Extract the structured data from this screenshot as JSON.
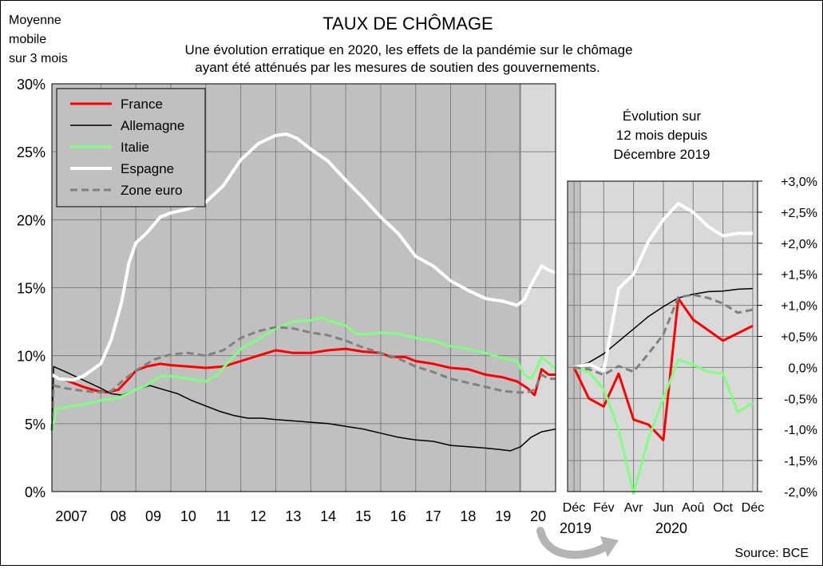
{
  "header": {
    "corner_label": [
      "Moyenne",
      "mobile",
      "sur 3 mois"
    ],
    "title": "TAUX DE CHÔMAGE",
    "subtitle": [
      "Une évolution erratique en 2020, les effets de la pandémie sur le chômage",
      "ayant été atténués par les mesures de soutien des gouvernements."
    ]
  },
  "inset_title": [
    "Évolution sur",
    "12 mois depuis",
    "Décembre 2019"
  ],
  "source": "Source: BCE",
  "colors": {
    "France": "#ff0000",
    "Allemagne": "#000000",
    "Italie": "#7fff7f",
    "Espagne": "#ffffff",
    "Zone euro": "#808080",
    "plot_bg": "#c0c0c0",
    "plot_bg_2020": "#d9d9d9"
  },
  "chart_data": [
    {
      "type": "line",
      "ylim": [
        0,
        30
      ],
      "xlim": [
        2006.6,
        2021.0
      ],
      "yticks": [
        "0%",
        "5%",
        "10%",
        "15%",
        "20%",
        "25%",
        "30%"
      ],
      "xticks": [
        "2007",
        "08",
        "09",
        "10",
        "11",
        "12",
        "13",
        "14",
        "15",
        "16",
        "17",
        "18",
        "19",
        "20"
      ],
      "grid": true,
      "legend": "top-left",
      "series": [
        {
          "name": "France",
          "style": "solid",
          "points": [
            [
              2006.6,
              8.6
            ],
            [
              2006.75,
              8.4
            ],
            [
              2007.0,
              8.2
            ],
            [
              2007.5,
              7.7
            ],
            [
              2007.9,
              7.4
            ],
            [
              2008.2,
              7.3
            ],
            [
              2008.5,
              7.5
            ],
            [
              2008.8,
              8.3
            ],
            [
              2009.0,
              8.9
            ],
            [
              2009.3,
              9.2
            ],
            [
              2009.7,
              9.4
            ],
            [
              2010.0,
              9.3
            ],
            [
              2010.5,
              9.2
            ],
            [
              2011.0,
              9.1
            ],
            [
              2011.5,
              9.2
            ],
            [
              2012.0,
              9.6
            ],
            [
              2012.5,
              10.0
            ],
            [
              2013.0,
              10.4
            ],
            [
              2013.5,
              10.2
            ],
            [
              2014.0,
              10.2
            ],
            [
              2014.5,
              10.4
            ],
            [
              2015.0,
              10.5
            ],
            [
              2015.5,
              10.3
            ],
            [
              2016.0,
              10.2
            ],
            [
              2016.3,
              9.9
            ],
            [
              2016.7,
              9.9
            ],
            [
              2017.0,
              9.6
            ],
            [
              2017.5,
              9.4
            ],
            [
              2018.0,
              9.1
            ],
            [
              2018.5,
              9.0
            ],
            [
              2019.0,
              8.6
            ],
            [
              2019.5,
              8.4
            ],
            [
              2019.9,
              8.1
            ],
            [
              2020.2,
              7.6
            ],
            [
              2020.4,
              7.1
            ],
            [
              2020.6,
              9.0
            ],
            [
              2020.8,
              8.6
            ],
            [
              2021.0,
              8.6
            ]
          ]
        },
        {
          "name": "Allemagne",
          "style": "solid",
          "points": [
            [
              2006.6,
              4.2
            ],
            [
              2006.65,
              9.2
            ],
            [
              2007.0,
              8.8
            ],
            [
              2007.5,
              8.2
            ],
            [
              2008.0,
              7.6
            ],
            [
              2008.3,
              7.2
            ],
            [
              2008.6,
              7.1
            ],
            [
              2009.0,
              7.5
            ],
            [
              2009.4,
              7.8
            ],
            [
              2009.8,
              7.5
            ],
            [
              2010.2,
              7.2
            ],
            [
              2010.6,
              6.7
            ],
            [
              2011.0,
              6.3
            ],
            [
              2011.4,
              5.9
            ],
            [
              2011.8,
              5.6
            ],
            [
              2012.2,
              5.4
            ],
            [
              2012.6,
              5.4
            ],
            [
              2013.0,
              5.3
            ],
            [
              2013.5,
              5.2
            ],
            [
              2014.0,
              5.1
            ],
            [
              2014.5,
              5.0
            ],
            [
              2015.0,
              4.8
            ],
            [
              2015.5,
              4.6
            ],
            [
              2016.0,
              4.3
            ],
            [
              2016.5,
              4.0
            ],
            [
              2017.0,
              3.8
            ],
            [
              2017.5,
              3.7
            ],
            [
              2018.0,
              3.4
            ],
            [
              2018.5,
              3.3
            ],
            [
              2019.0,
              3.2
            ],
            [
              2019.4,
              3.1
            ],
            [
              2019.7,
              3.0
            ],
            [
              2020.0,
              3.3
            ],
            [
              2020.3,
              4.0
            ],
            [
              2020.6,
              4.4
            ],
            [
              2021.0,
              4.6
            ]
          ]
        },
        {
          "name": "Italie",
          "style": "solid",
          "points": [
            [
              2006.6,
              4.2
            ],
            [
              2006.72,
              6.1
            ],
            [
              2007.0,
              6.2
            ],
            [
              2007.5,
              6.4
            ],
            [
              2008.0,
              6.7
            ],
            [
              2008.5,
              6.9
            ],
            [
              2009.0,
              7.5
            ],
            [
              2009.3,
              7.8
            ],
            [
              2009.7,
              8.5
            ],
            [
              2010.0,
              8.5
            ],
            [
              2010.5,
              8.3
            ],
            [
              2011.0,
              8.1
            ],
            [
              2011.3,
              8.5
            ],
            [
              2011.6,
              9.4
            ],
            [
              2012.0,
              10.5
            ],
            [
              2012.5,
              11.2
            ],
            [
              2013.0,
              12.0
            ],
            [
              2013.5,
              12.5
            ],
            [
              2014.0,
              12.6
            ],
            [
              2014.3,
              12.8
            ],
            [
              2014.6,
              12.5
            ],
            [
              2015.0,
              12.2
            ],
            [
              2015.3,
              11.6
            ],
            [
              2015.7,
              11.6
            ],
            [
              2016.0,
              11.7
            ],
            [
              2016.5,
              11.6
            ],
            [
              2017.0,
              11.3
            ],
            [
              2017.5,
              11.1
            ],
            [
              2018.0,
              10.7
            ],
            [
              2018.5,
              10.5
            ],
            [
              2019.0,
              10.2
            ],
            [
              2019.5,
              9.8
            ],
            [
              2019.9,
              9.6
            ],
            [
              2020.1,
              8.6
            ],
            [
              2020.3,
              8.3
            ],
            [
              2020.45,
              9.0
            ],
            [
              2020.6,
              9.9
            ],
            [
              2020.8,
              9.5
            ],
            [
              2021.0,
              9.0
            ]
          ]
        },
        {
          "name": "Espagne",
          "style": "solid",
          "points": [
            [
              2006.6,
              8.6
            ],
            [
              2006.8,
              8.3
            ],
            [
              2007.2,
              8.2
            ],
            [
              2007.5,
              8.5
            ],
            [
              2008.0,
              9.4
            ],
            [
              2008.3,
              11.2
            ],
            [
              2008.6,
              14.0
            ],
            [
              2008.8,
              16.8
            ],
            [
              2009.0,
              18.3
            ],
            [
              2009.3,
              19.0
            ],
            [
              2009.7,
              20.2
            ],
            [
              2010.0,
              20.5
            ],
            [
              2010.5,
              20.8
            ],
            [
              2011.0,
              21.3
            ],
            [
              2011.5,
              22.5
            ],
            [
              2012.0,
              24.4
            ],
            [
              2012.5,
              25.6
            ],
            [
              2013.0,
              26.2
            ],
            [
              2013.3,
              26.3
            ],
            [
              2013.6,
              26.0
            ],
            [
              2014.0,
              25.2
            ],
            [
              2014.5,
              24.3
            ],
            [
              2015.0,
              22.9
            ],
            [
              2015.5,
              21.6
            ],
            [
              2016.0,
              20.2
            ],
            [
              2016.5,
              19.0
            ],
            [
              2017.0,
              17.3
            ],
            [
              2017.5,
              16.6
            ],
            [
              2018.0,
              15.5
            ],
            [
              2018.5,
              14.8
            ],
            [
              2019.0,
              14.2
            ],
            [
              2019.5,
              14.0
            ],
            [
              2019.9,
              13.7
            ],
            [
              2020.1,
              14.1
            ],
            [
              2020.3,
              15.2
            ],
            [
              2020.6,
              16.6
            ],
            [
              2020.8,
              16.3
            ],
            [
              2021.0,
              16.1
            ]
          ]
        },
        {
          "name": "Zone euro",
          "style": "dashed",
          "points": [
            [
              2006.6,
              4.5
            ],
            [
              2006.65,
              7.8
            ],
            [
              2007.0,
              7.6
            ],
            [
              2007.5,
              7.4
            ],
            [
              2008.0,
              7.3
            ],
            [
              2008.3,
              7.4
            ],
            [
              2008.6,
              8.1
            ],
            [
              2009.0,
              8.9
            ],
            [
              2009.5,
              9.7
            ],
            [
              2010.0,
              10.1
            ],
            [
              2010.5,
              10.2
            ],
            [
              2011.0,
              10.0
            ],
            [
              2011.5,
              10.4
            ],
            [
              2012.0,
              11.3
            ],
            [
              2012.5,
              11.8
            ],
            [
              2013.0,
              12.1
            ],
            [
              2013.5,
              12.0
            ],
            [
              2014.0,
              11.7
            ],
            [
              2014.5,
              11.5
            ],
            [
              2015.0,
              11.1
            ],
            [
              2015.5,
              10.6
            ],
            [
              2016.0,
              10.2
            ],
            [
              2016.5,
              9.8
            ],
            [
              2017.0,
              9.2
            ],
            [
              2017.5,
              8.8
            ],
            [
              2018.0,
              8.3
            ],
            [
              2018.5,
              8.0
            ],
            [
              2019.0,
              7.7
            ],
            [
              2019.5,
              7.4
            ],
            [
              2019.9,
              7.3
            ],
            [
              2020.2,
              7.3
            ],
            [
              2020.4,
              7.5
            ],
            [
              2020.6,
              8.6
            ],
            [
              2020.8,
              8.3
            ],
            [
              2021.0,
              8.3
            ]
          ]
        }
      ]
    },
    {
      "type": "line",
      "title": "Évolution sur 12 mois depuis Décembre 2019",
      "ylim": [
        -2.0,
        3.0
      ],
      "yticks": [
        "+3,0%",
        "+2,5%",
        "+2,0%",
        "+1,5%",
        "+1,0%",
        "+0,5%",
        "0,0%",
        "-0,5%",
        "-1,0%",
        "-1,5%",
        "-2,0%"
      ],
      "xticks": [
        "Déc",
        "Fév",
        "Avr",
        "Jun",
        "Aoû",
        "Oct",
        "Déc"
      ],
      "xyears": [
        "2019",
        "2020"
      ],
      "grid": true,
      "series": [
        {
          "name": "France",
          "style": "solid",
          "values": [
            0.0,
            -0.5,
            -0.63,
            -0.1,
            -0.84,
            -0.92,
            -1.17,
            1.11,
            0.77,
            0.6,
            0.43,
            0.55,
            0.67
          ]
        },
        {
          "name": "Allemagne",
          "style": "solid",
          "values": [
            0.0,
            0.08,
            0.22,
            0.42,
            0.62,
            0.82,
            0.98,
            1.12,
            1.18,
            1.22,
            1.23,
            1.26,
            1.27
          ]
        },
        {
          "name": "Italie",
          "style": "solid",
          "values": [
            0.0,
            -0.08,
            -0.35,
            -1.0,
            -2.03,
            -1.15,
            -0.5,
            0.12,
            0.05,
            -0.07,
            -0.1,
            -0.72,
            -0.57
          ]
        },
        {
          "name": "Espagne",
          "style": "solid",
          "values": [
            0.0,
            0.05,
            -0.05,
            1.27,
            1.5,
            2.03,
            2.38,
            2.64,
            2.5,
            2.27,
            2.12,
            2.16,
            2.16
          ]
        },
        {
          "name": "Zone euro",
          "style": "dashed",
          "values": [
            0.0,
            -0.03,
            -0.12,
            0.02,
            -0.07,
            0.22,
            0.53,
            1.13,
            1.17,
            1.12,
            1.03,
            0.88,
            0.93
          ]
        }
      ]
    }
  ]
}
